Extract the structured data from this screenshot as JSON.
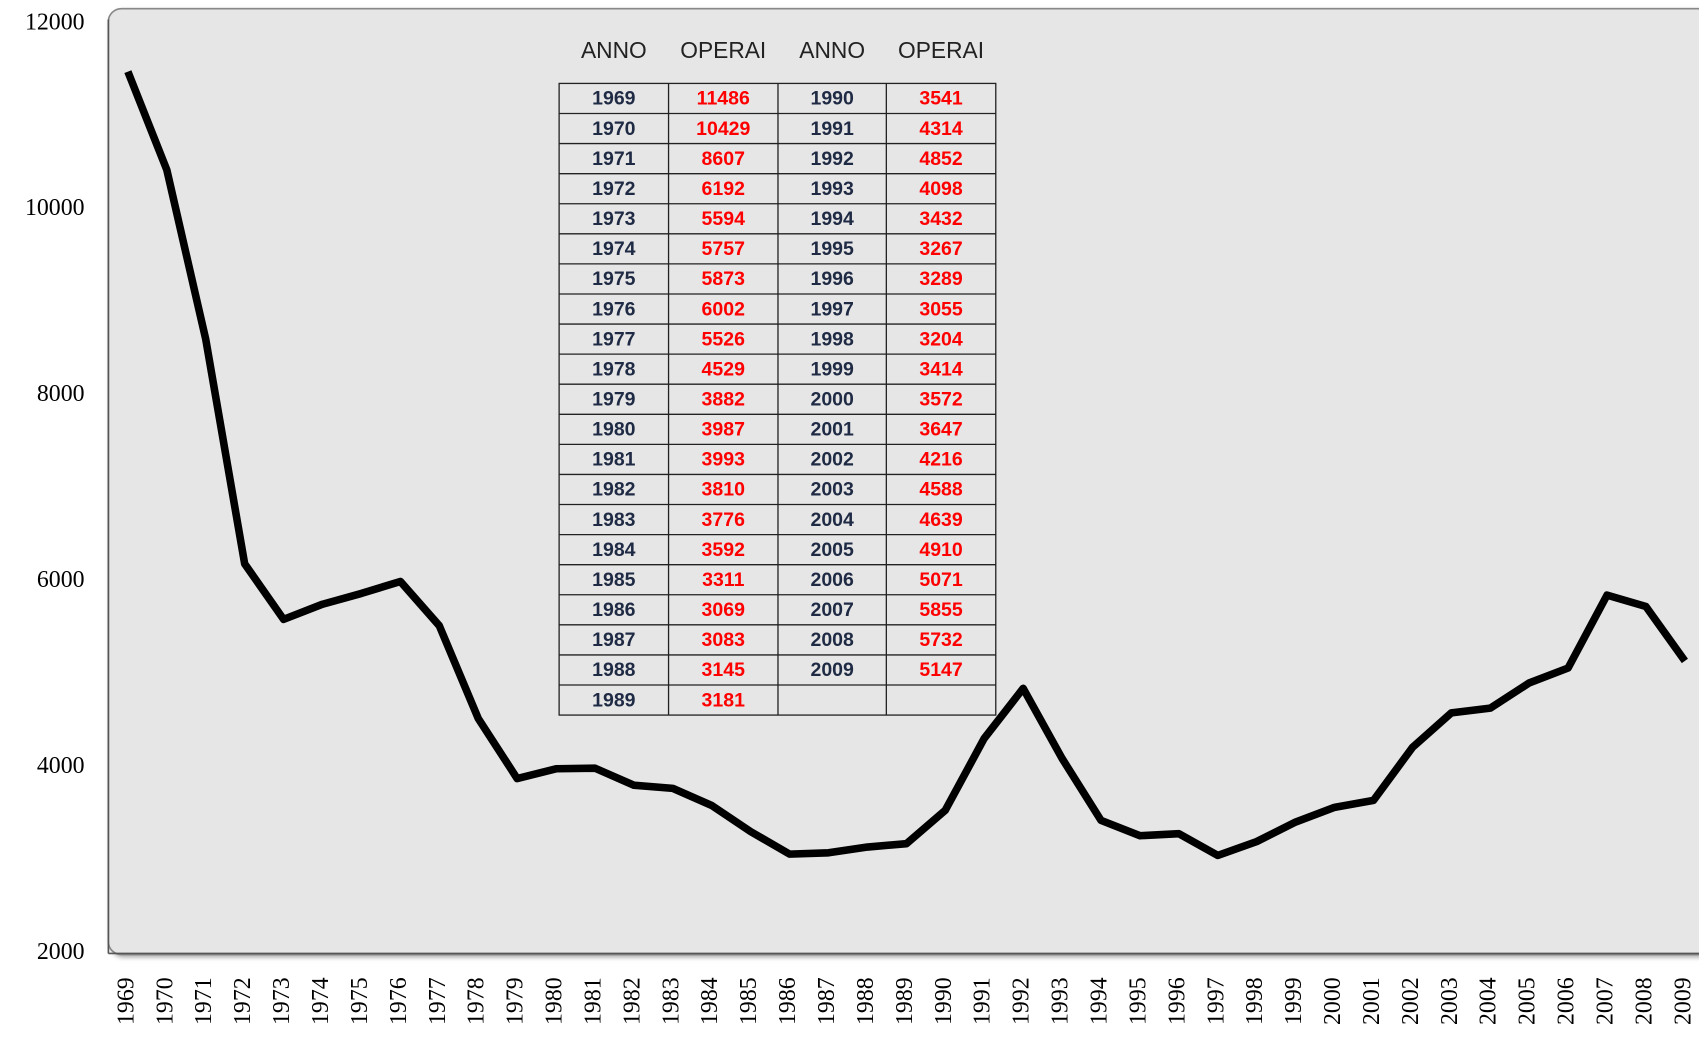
{
  "chart_data": {
    "type": "line",
    "categories": [
      "1969",
      "1970",
      "1971",
      "1972",
      "1973",
      "1974",
      "1975",
      "1976",
      "1977",
      "1978",
      "1979",
      "1980",
      "1981",
      "1982",
      "1983",
      "1984",
      "1985",
      "1986",
      "1987",
      "1988",
      "1989",
      "1990",
      "1991",
      "1992",
      "1993",
      "1994",
      "1995",
      "1996",
      "1997",
      "1998",
      "1999",
      "2000",
      "2001",
      "2002",
      "2003",
      "2004",
      "2005",
      "2006",
      "2007",
      "2008",
      "2009"
    ],
    "values": [
      11486,
      10429,
      8607,
      6192,
      5594,
      5757,
      5873,
      6002,
      5526,
      4529,
      3882,
      3987,
      3993,
      3810,
      3776,
      3592,
      3311,
      3069,
      3083,
      3145,
      3181,
      3541,
      4314,
      4852,
      4098,
      3432,
      3267,
      3289,
      3055,
      3204,
      3414,
      3572,
      3647,
      4216,
      4588,
      4639,
      4910,
      5071,
      5855,
      5732,
      5147
    ],
    "color": "#000000",
    "ylim": [
      2000,
      12000
    ],
    "yticks": [
      2000,
      4000,
      6000,
      8000,
      10000,
      12000
    ],
    "grid": false,
    "table_headers": [
      "ANNO",
      "OPERAI",
      "ANNO",
      "OPERAI"
    ],
    "table_year_color": "#1f2a44",
    "table_value_color": "#ff0000"
  }
}
